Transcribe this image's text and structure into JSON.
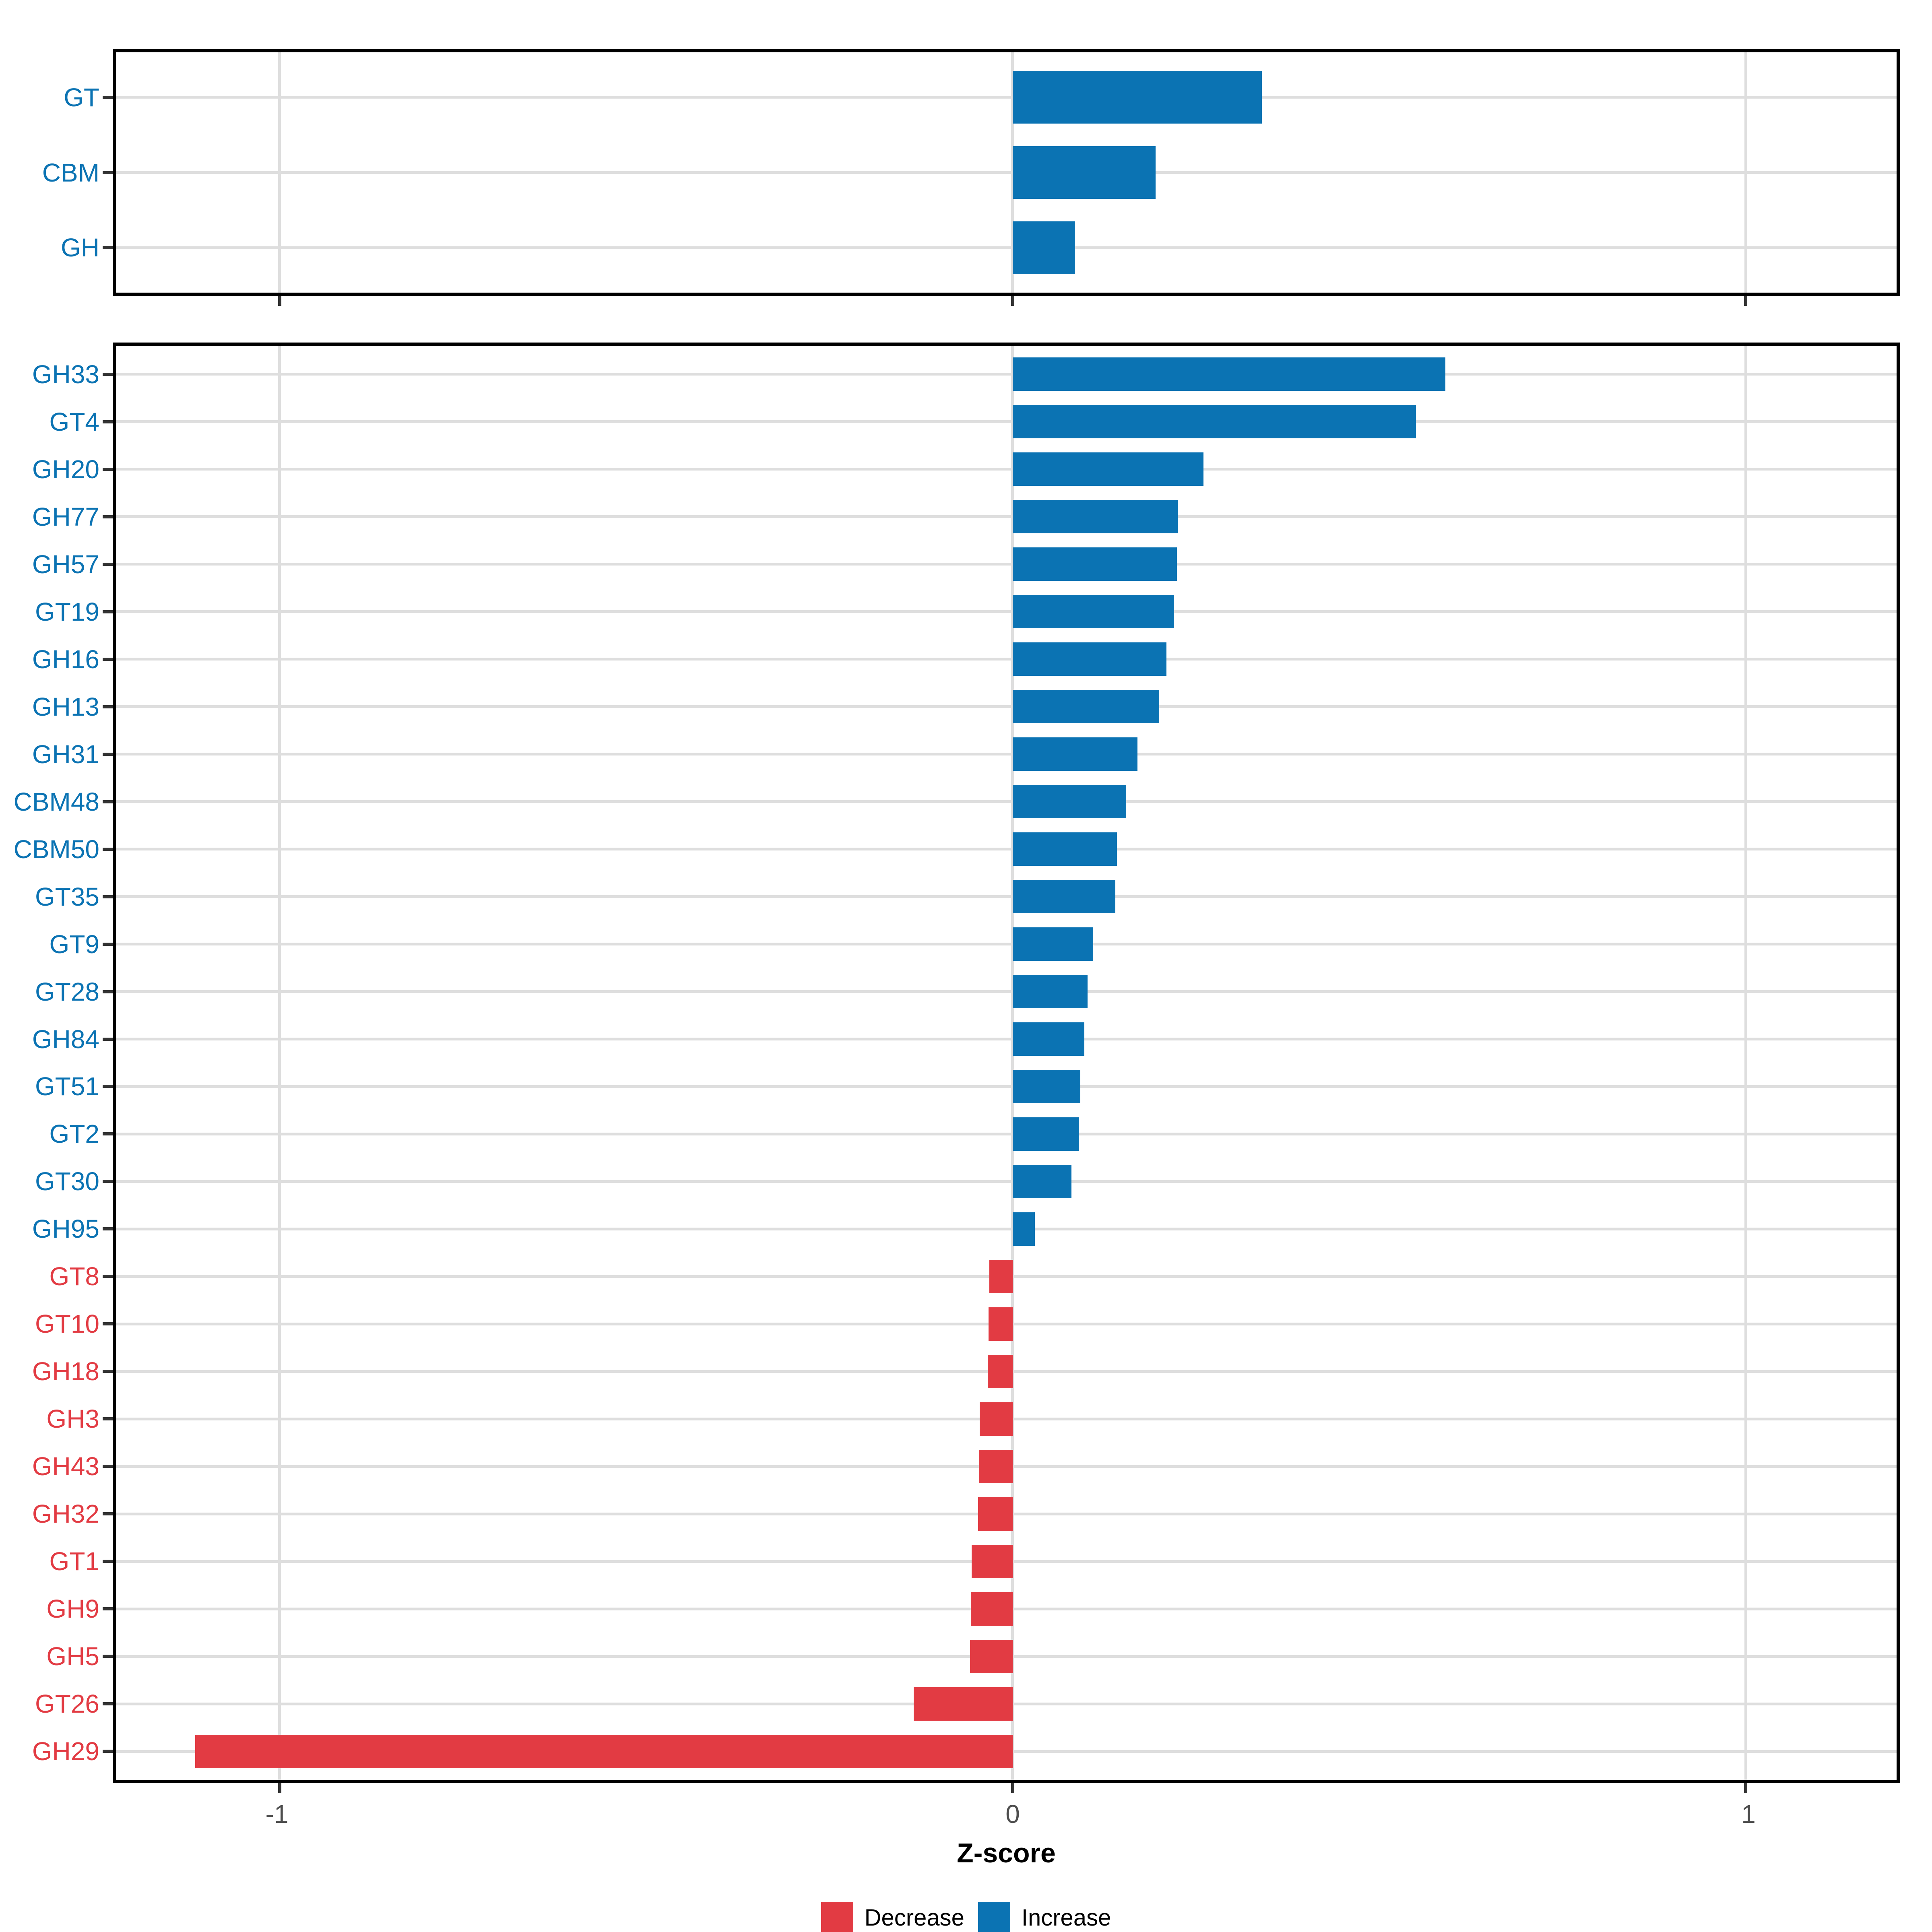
{
  "chart_data": {
    "type": "bar",
    "orientation": "horizontal",
    "title": "",
    "xlabel": "Z-score",
    "ylabel": "",
    "xlim": [
      -1.22,
      1.21
    ],
    "x_ticks": [
      -1,
      0,
      1
    ],
    "x_tick_labels": [
      "-1",
      "0",
      "1"
    ],
    "grid": "major gridlines only: horizontal at each category, vertical at x ticks",
    "legend_position": "bottom-center",
    "legend": {
      "items": [
        {
          "label": "Decrease",
          "color": "#e23b43"
        },
        {
          "label": "Increase",
          "color": "#0b73b3"
        }
      ]
    },
    "panels": [
      {
        "name": "enzyme-class-summary",
        "categories": [
          "GT",
          "CBM",
          "GH"
        ],
        "values": [
          0.34,
          0.195,
          0.085
        ],
        "series_name": "Z-score"
      },
      {
        "name": "enzyme-families",
        "categories": [
          "GH33",
          "GT4",
          "GH20",
          "GH77",
          "GH57",
          "GT19",
          "GH16",
          "GH13",
          "GH31",
          "CBM48",
          "CBM50",
          "GT35",
          "GT9",
          "GT28",
          "GH84",
          "GT51",
          "GT2",
          "GT30",
          "GH95",
          "GT8",
          "GT10",
          "GH18",
          "GH3",
          "GH43",
          "GH32",
          "GT1",
          "GH9",
          "GH5",
          "GT26",
          "GH29"
        ],
        "values": [
          0.59,
          0.55,
          0.26,
          0.225,
          0.224,
          0.22,
          0.21,
          0.2,
          0.17,
          0.155,
          0.142,
          0.14,
          0.11,
          0.102,
          0.098,
          0.092,
          0.09,
          0.08,
          0.03,
          -0.032,
          -0.033,
          -0.034,
          -0.045,
          -0.046,
          -0.047,
          -0.056,
          -0.057,
          -0.058,
          -0.135,
          -1.115
        ],
        "series_name": "Z-score"
      }
    ]
  },
  "colors": {
    "increase": "#0b73b3",
    "decrease": "#e23b43",
    "grid": "#dedede",
    "panel_border": "#000000",
    "axis_tick": "#333333",
    "tick_label": "#4d4d4d",
    "axis_title": "#000000",
    "background": "#ffffff"
  }
}
